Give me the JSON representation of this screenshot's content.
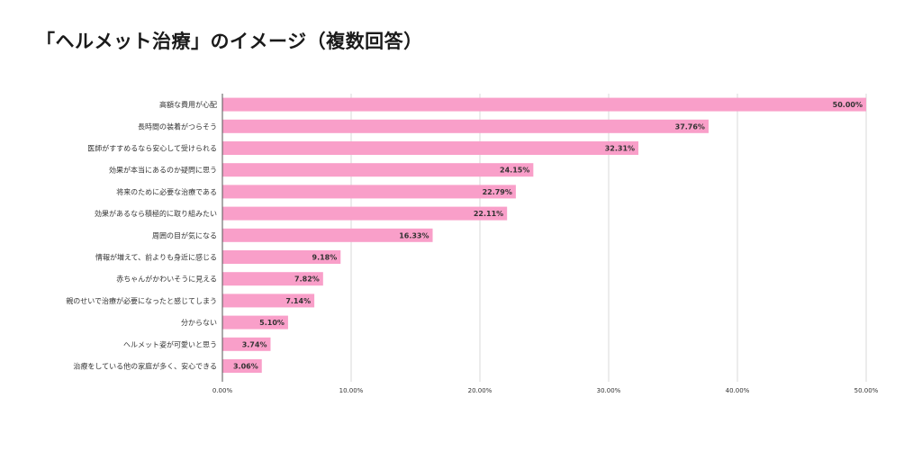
{
  "chart_data": {
    "type": "bar",
    "orientation": "horizontal",
    "title": "「ヘルメット治療」のイメージ（複数回答）",
    "categories": [
      "高額な費用が心配",
      "長時間の装着がつらそう",
      "医師がすすめるなら安心して受けられる",
      "効果が本当にあるのか疑問に思う",
      "将来のために必要な治療である",
      "効果があるなら積極的に取り組みたい",
      "周囲の目が気になる",
      "情報が増えて、前よりも身近に感じる",
      "赤ちゃんがかわいそうに見える",
      "親のせいで治療が必要になったと感じてしまう",
      "分からない",
      "ヘルメット姿が可愛いと思う",
      "治療をしている他の家庭が多く、安心できる"
    ],
    "values": [
      50.0,
      37.76,
      32.31,
      24.15,
      22.79,
      22.11,
      16.33,
      9.18,
      7.82,
      7.14,
      5.1,
      3.74,
      3.06
    ],
    "value_labels": [
      "50.00%",
      "37.76%",
      "32.31%",
      "24.15%",
      "22.79%",
      "22.11%",
      "16.33%",
      "9.18%",
      "7.82%",
      "7.14%",
      "5.10%",
      "3.74%",
      "3.06%"
    ],
    "xlim": [
      0,
      50
    ],
    "xticks": [
      0,
      10,
      20,
      30,
      40,
      50
    ],
    "xtick_labels": [
      "0.00%",
      "10.00%",
      "20.00%",
      "30.00%",
      "40.00%",
      "50.00%"
    ],
    "xlabel": "",
    "ylabel": "",
    "grid": true,
    "legend": "none",
    "bar_color": "#f99fc9"
  }
}
